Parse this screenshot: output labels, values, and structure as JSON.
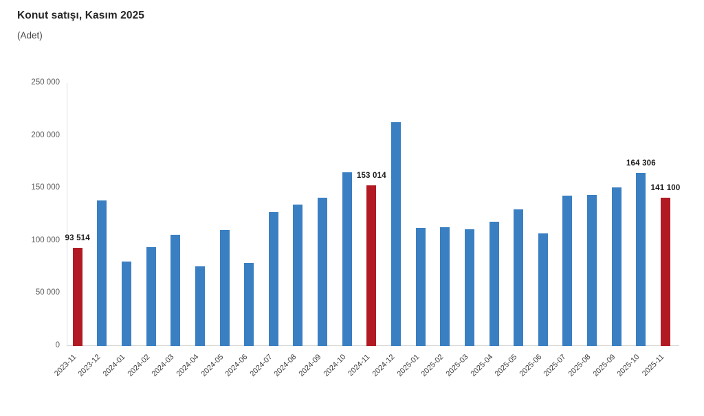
{
  "title": "Konut satışı, Kasım 2025",
  "subtitle": "(Adet)",
  "chart_data": {
    "type": "bar",
    "title": "Konut satışı, Kasım 2025",
    "subtitle": "(Adet)",
    "xlabel": "",
    "ylabel": "Adet",
    "ylim": [
      0,
      250000
    ],
    "ytick_interval": 50000,
    "ytick_labels": [
      "0",
      "50 000",
      "100 000",
      "150 000",
      "200 000",
      "250 000"
    ],
    "grid": false,
    "legend_position": "none",
    "categories": [
      "2023-11",
      "2023-12",
      "2024-01",
      "2024-02",
      "2024-03",
      "2024-04",
      "2024-05",
      "2024-06",
      "2024-07",
      "2024-08",
      "2024-09",
      "2024-10",
      "2024-11",
      "2024-12",
      "2025-01",
      "2025-02",
      "2025-03",
      "2025-04",
      "2025-05",
      "2025-06",
      "2025-07",
      "2025-08",
      "2025-09",
      "2025-10",
      "2025-11"
    ],
    "values": [
      93514,
      138500,
      80300,
      93900,
      105500,
      75600,
      110600,
      79300,
      127100,
      134200,
      140900,
      165100,
      153014,
      212600,
      112200,
      112800,
      110800,
      118400,
      130000,
      107100,
      142900,
      143300,
      150700,
      164306,
      141100
    ],
    "highlighted_categories": [
      "2023-11",
      "2024-11",
      "2025-11"
    ],
    "data_labels": [
      {
        "category": "2023-11",
        "text": "93 514"
      },
      {
        "category": "2024-11",
        "text": "153 014"
      },
      {
        "category": "2025-10",
        "text": "164 306"
      },
      {
        "category": "2025-11",
        "text": "141 100"
      }
    ],
    "colors": {
      "bar_default": "#3a7fc2",
      "bar_highlight": "#b11a22",
      "axis_line": "#dddddd",
      "tick_text": "#595959",
      "data_label_text": "#1a1a1a"
    }
  }
}
